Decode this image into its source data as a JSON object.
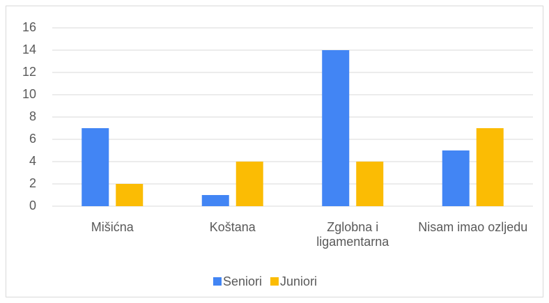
{
  "chart_data": {
    "type": "bar",
    "categories": [
      "Mišićna",
      "Koštana",
      "Zglobna i ligamentarna",
      "Nisam imao ozljedu"
    ],
    "series": [
      {
        "name": "Seniori",
        "color": "#4285f4",
        "values": [
          7,
          1,
          14,
          5
        ]
      },
      {
        "name": "Juniori",
        "color": "#fbbc04",
        "values": [
          2,
          4,
          4,
          7
        ]
      }
    ],
    "ylim": [
      0,
      16
    ],
    "yticks": [
      0,
      2,
      4,
      6,
      8,
      10,
      12,
      14,
      16
    ],
    "grid": true,
    "legend": "bottom"
  }
}
